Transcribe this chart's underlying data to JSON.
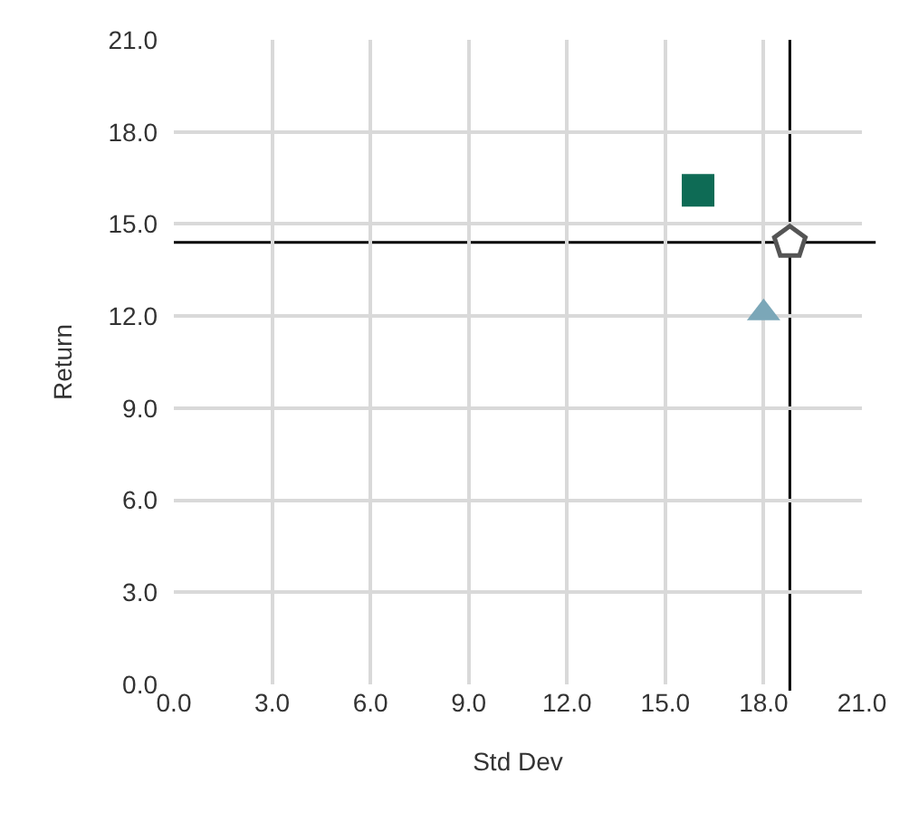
{
  "chart_data": {
    "type": "scatter",
    "xlabel": "Std Dev",
    "ylabel": "Return",
    "xlim": [
      0,
      21
    ],
    "ylim": [
      0,
      21
    ],
    "xticks": [
      {
        "value": 0,
        "label": "0.0"
      },
      {
        "value": 3,
        "label": "3.0"
      },
      {
        "value": 6,
        "label": "6.0"
      },
      {
        "value": 9,
        "label": "9.0"
      },
      {
        "value": 12,
        "label": "12.0"
      },
      {
        "value": 15,
        "label": "15.0"
      },
      {
        "value": 18,
        "label": "18.0"
      },
      {
        "value": 21,
        "label": "21.0"
      }
    ],
    "yticks": [
      {
        "value": 0,
        "label": "0.0"
      },
      {
        "value": 3,
        "label": "3.0"
      },
      {
        "value": 6,
        "label": "6.0"
      },
      {
        "value": 9,
        "label": "9.0"
      },
      {
        "value": 12,
        "label": "12.0"
      },
      {
        "value": 15,
        "label": "15.0"
      },
      {
        "value": 18,
        "label": "18.0"
      },
      {
        "value": 21,
        "label": "21.0"
      }
    ],
    "grid": true,
    "legend": false,
    "series": [
      {
        "color": "#0e6b55",
        "marker": "square",
        "x": [
          16.0
        ],
        "values": [
          16.1
        ]
      },
      {
        "color": "#7ba7b8",
        "marker": "triangle",
        "x": [
          18.0
        ],
        "values": [
          12.1
        ]
      },
      {
        "color": "#ffffff",
        "x": [
          18.8
        ],
        "values": [
          14.4
        ]
      }
    ],
    "ref_lines": [
      {
        "axis": "x",
        "value": 18.8,
        "color": "#000000"
      },
      {
        "axis": "y",
        "value": 14.4,
        "color": "#000000"
      }
    ]
  }
}
